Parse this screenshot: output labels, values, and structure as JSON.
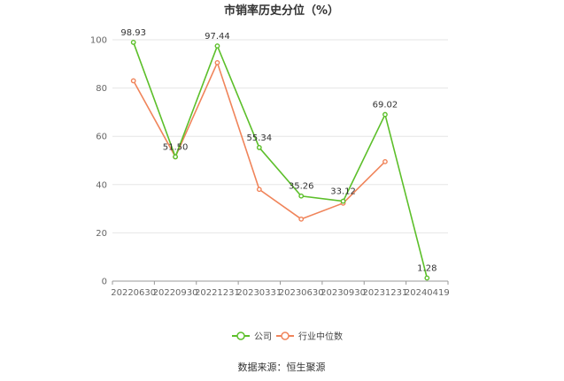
{
  "chart_data": {
    "type": "line",
    "title": "市销率历史分位（%）",
    "categories": [
      "20220630",
      "20220930",
      "20221231",
      "20230331",
      "20230630",
      "20230930",
      "20231231",
      "20240419"
    ],
    "ylim": [
      0,
      100
    ],
    "yticks": [
      "0",
      "20",
      "40",
      "60",
      "80",
      "100"
    ],
    "grid": true,
    "legend_position": "bottom",
    "series": [
      {
        "name": "公司",
        "color": "#5cbf2a",
        "values": [
          98.93,
          51.5,
          97.44,
          55.34,
          35.26,
          33.12,
          69.02,
          1.28
        ],
        "labels": [
          "98.93",
          "51.50",
          "97.44",
          "55.34",
          "35.26",
          "33.12",
          "69.02",
          "1.28"
        ]
      },
      {
        "name": "行业中位数",
        "color": "#f0845a",
        "values": [
          83,
          51.5,
          90.5,
          38,
          25.7,
          32.3,
          49.5,
          null
        ]
      }
    ],
    "source": "数据来源：恒生聚源"
  }
}
